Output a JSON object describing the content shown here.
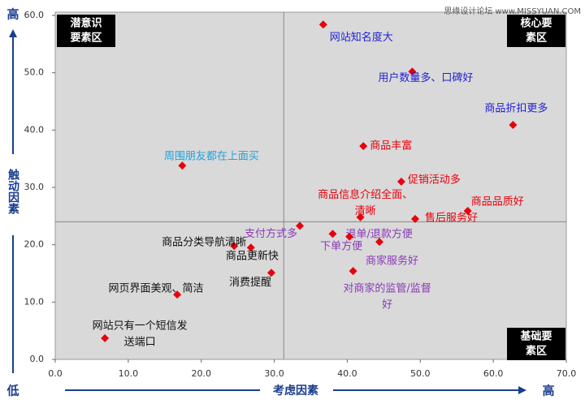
{
  "chart_data": {
    "type": "scatter",
    "watermark": "思缘设计论坛 www.MISSYUAN.COM",
    "y_label": "触动因素",
    "y_high": "高",
    "y_low": "低",
    "x_label": "考虑因素",
    "x_high": "高",
    "xlim": [
      0,
      70
    ],
    "ylim": [
      0,
      60
    ],
    "xticks": [
      {
        "value": 0,
        "label": "0.0"
      },
      {
        "value": 10,
        "label": "10.0"
      },
      {
        "value": 20,
        "label": "20.0"
      },
      {
        "value": 30,
        "label": "30.0"
      },
      {
        "value": 40,
        "label": "40.0"
      },
      {
        "value": 50,
        "label": "50.0"
      },
      {
        "value": 60,
        "label": "60.0"
      },
      {
        "value": 70,
        "label": "70.0"
      }
    ],
    "yticks": [
      {
        "value": 0,
        "label": "0.0"
      },
      {
        "value": 10,
        "label": "10.0"
      },
      {
        "value": 20,
        "label": "20.0"
      },
      {
        "value": 30,
        "label": "30.0"
      },
      {
        "value": 40,
        "label": "40.0"
      },
      {
        "value": 50,
        "label": "50.0"
      },
      {
        "value": 60,
        "label": "60.0"
      }
    ],
    "divider_x": 31.3,
    "divider_y": 24.0,
    "quadrants": [
      [
        "潜意识",
        "要素区"
      ],
      [
        "核心要",
        "素区"
      ],
      [
        "基础要",
        "素区"
      ]
    ],
    "marker_color": "#e8000b",
    "x": [
      36.7,
      48.9,
      62.7,
      42.2,
      17.4,
      47.4,
      41.8,
      56.5,
      49.3,
      33.5,
      38.0,
      40.3,
      44.4,
      24.5,
      26.8,
      29.6,
      40.8,
      16.7,
      6.8
    ],
    "y": [
      58.4,
      50.2,
      40.9,
      37.2,
      33.8,
      31.0,
      24.8,
      25.9,
      24.5,
      23.3,
      21.9,
      21.4,
      20.5,
      19.8,
      19.5,
      15.1,
      15.4,
      11.3,
      3.7
    ],
    "labels": [
      [
        "网站知名度大"
      ],
      [
        "用户数量多、口碑好"
      ],
      [
        "商品折扣更多"
      ],
      [
        "商品丰富"
      ],
      [
        "周围朋友都在上面买"
      ],
      [
        "促销活动多"
      ],
      [
        "商品信息介绍全面、",
        "清晰"
      ],
      [
        "商品品质好"
      ],
      [
        "售后服务好"
      ],
      [
        "支付方式多"
      ],
      [
        "退单/退款方便"
      ],
      [
        "下单方便"
      ],
      [
        "商家服务好"
      ],
      [
        "商品分类导航清晰"
      ],
      [
        "商品更新快"
      ],
      [
        "消费提醒"
      ],
      [
        "对商家的监管/监督",
        "好"
      ],
      [
        "网页界面美观、简洁"
      ],
      [
        "网站只有一个短信发",
        "送端口"
      ]
    ],
    "label_colors": [
      "#1f1fd6",
      "#1f1fd6",
      "#1f1fd6",
      "#e8000b",
      "#1fa3e0",
      "#e8000b",
      "#e8000b",
      "#e8000b",
      "#e8000b",
      "#8a3ab9",
      "#8a3ab9",
      "#8a3ab9",
      "#8a3ab9",
      "#111111",
      "#111111",
      "#111111",
      "#8a3ab9",
      "#111111",
      "#111111"
    ]
  }
}
